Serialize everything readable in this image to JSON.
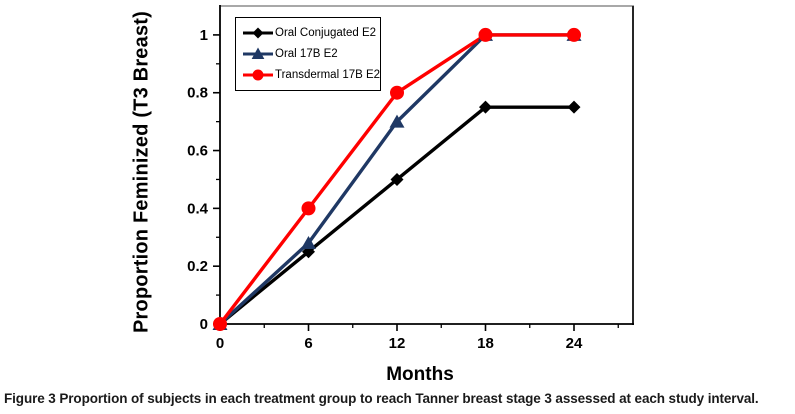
{
  "figure": {
    "caption_label": "Figure 3",
    "caption_text": "Proportion of subjects in each treatment group to reach Tanner breast stage 3 assessed at each study interval."
  },
  "chart_data": {
    "type": "line",
    "title": "",
    "xlabel": "Months",
    "ylabel": "Proportion Feminized (T3 Breast)",
    "x": [
      0,
      6,
      12,
      18,
      24
    ],
    "series": [
      {
        "name": "Oral Conjugated E2",
        "color": "#000000",
        "marker": "diamond",
        "values": [
          0,
          0.25,
          0.5,
          0.75,
          0.75
        ]
      },
      {
        "name": "Oral 17B E2",
        "color": "#1F3864",
        "marker": "triangle",
        "values": [
          0,
          0.28,
          0.7,
          1,
          1
        ]
      },
      {
        "name": "Transdermal 17B E2",
        "color": "#FF0000",
        "marker": "circle",
        "values": [
          0,
          0.4,
          0.8,
          1,
          1
        ]
      }
    ],
    "xlim": [
      0,
      28
    ],
    "ylim": [
      0,
      1.1
    ],
    "x_ticks": [
      0,
      6,
      12,
      18,
      24
    ],
    "x_tick_labels": [
      "0",
      "6",
      "12",
      "18",
      "24"
    ],
    "x_minor_ticks": [
      3,
      9,
      15,
      21,
      27
    ],
    "y_ticks": [
      0,
      0.2,
      0.4,
      0.6,
      0.8,
      1
    ],
    "y_tick_labels": [
      "0",
      "0.2",
      "0.4",
      "0.6",
      "0.8",
      "1"
    ],
    "y_minor_ticks": [
      0.1,
      0.3,
      0.5,
      0.7,
      0.9
    ],
    "grid": false,
    "legend_position": "top-left-inside",
    "axis_color": "#000000",
    "plot_border_top_color": "#8c8c8c",
    "plot_border_right_color": "#262626"
  }
}
